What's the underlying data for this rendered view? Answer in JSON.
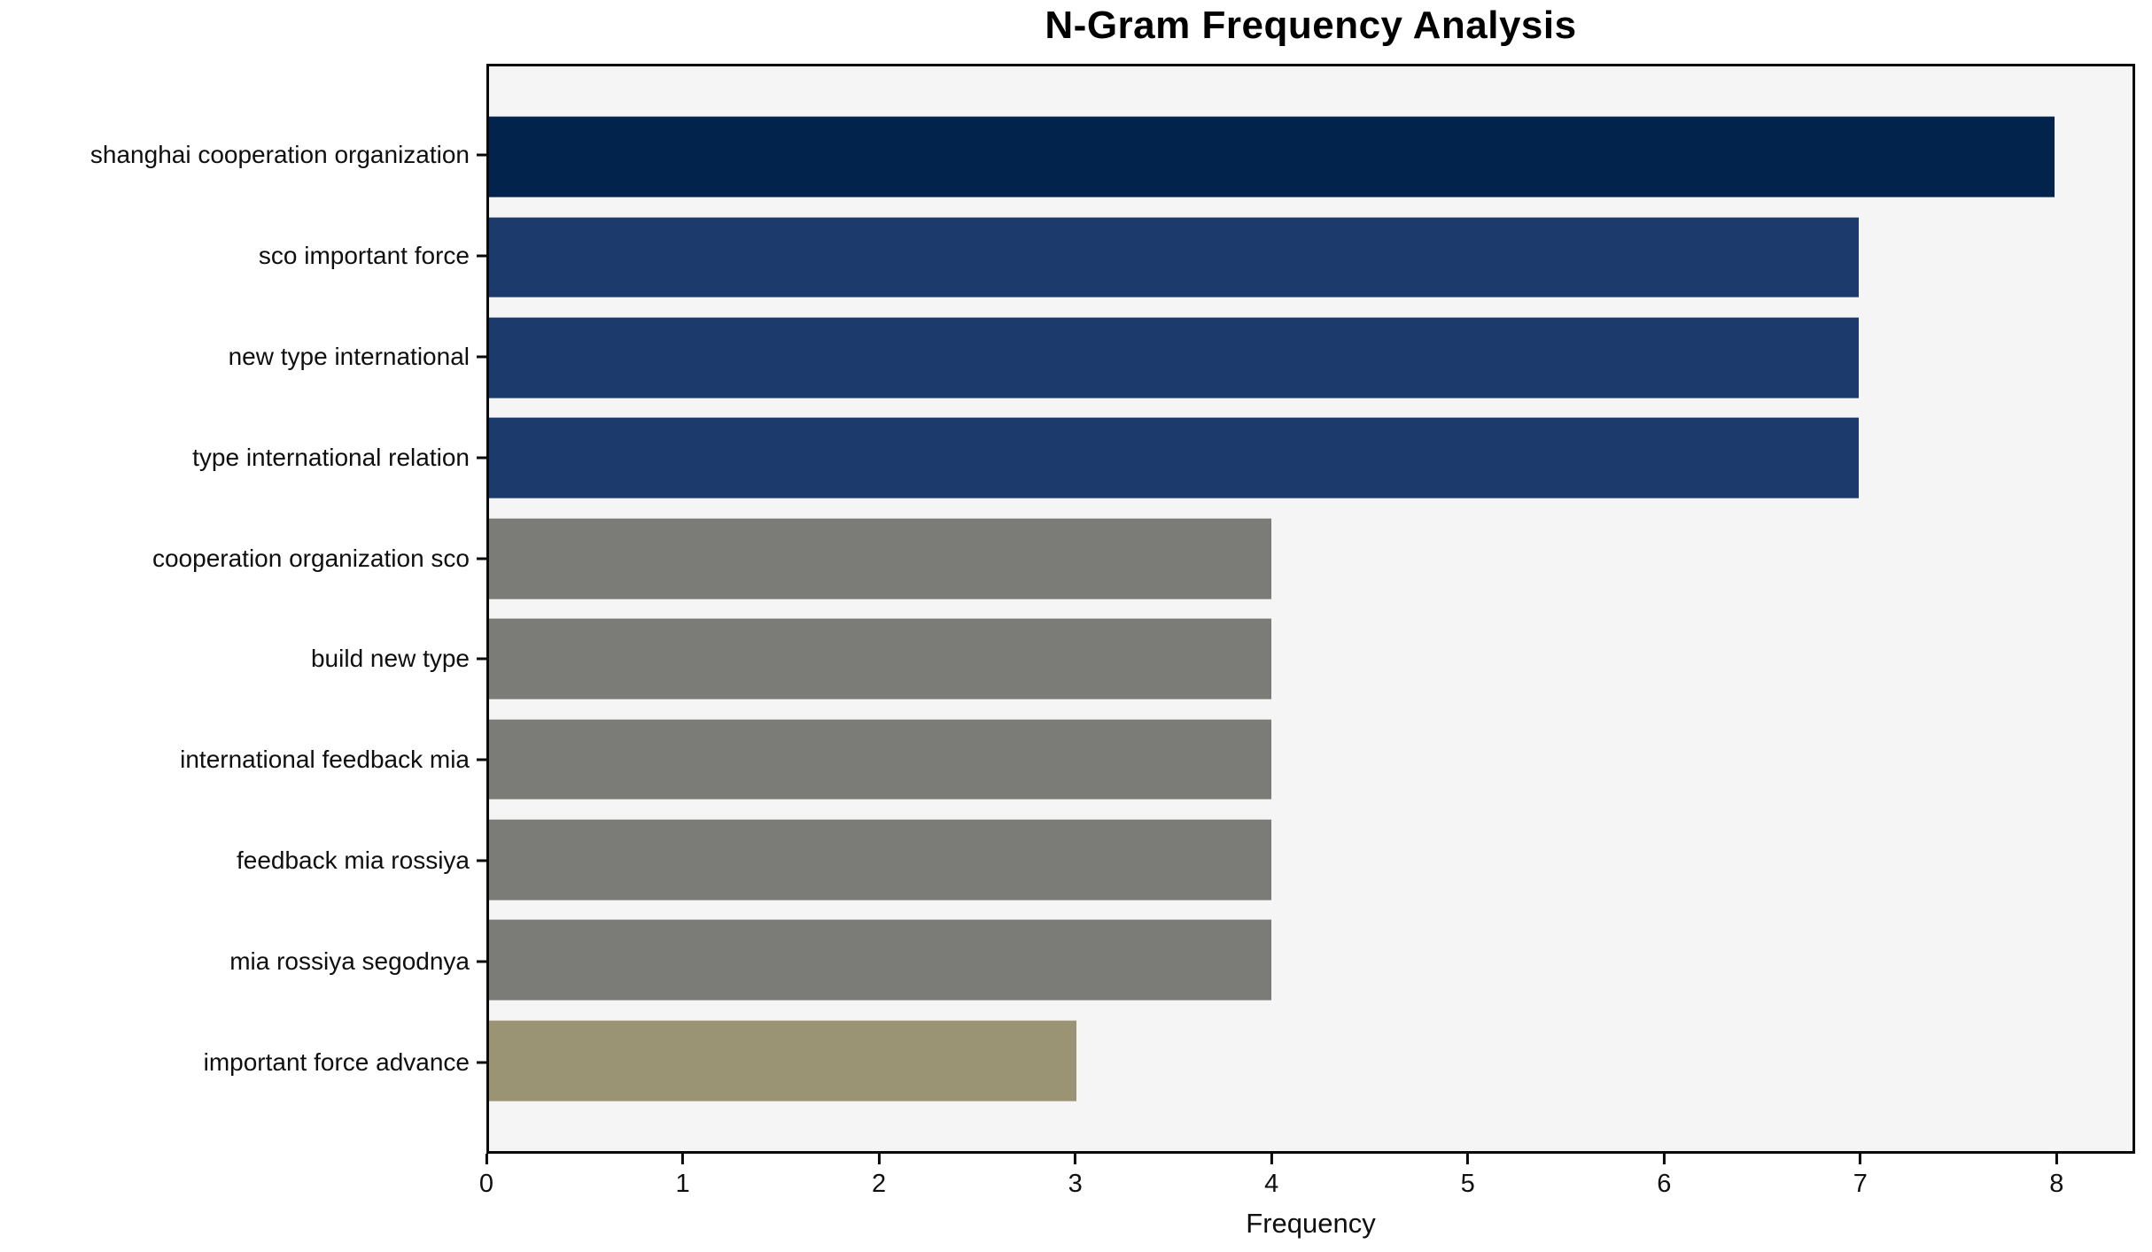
{
  "chart_data": {
    "type": "bar",
    "orientation": "horizontal",
    "title": "N-Gram Frequency Analysis",
    "xlabel": "Frequency",
    "ylabel": "",
    "categories": [
      "shanghai cooperation organization",
      "sco important force",
      "new type international",
      "type international relation",
      "cooperation organization sco",
      "build new type",
      "international feedback mia",
      "feedback mia rossiya",
      "mia rossiya segodnya",
      "important force advance"
    ],
    "values": [
      8,
      7,
      7,
      7,
      4,
      4,
      4,
      4,
      4,
      3
    ],
    "bar_colors": [
      "#02234c",
      "#1c3a6b",
      "#1c3a6b",
      "#1c3a6b",
      "#7b7b78",
      "#7b7b78",
      "#7b7b78",
      "#7b7b78",
      "#7b7b78",
      "#9a9374"
    ],
    "x_ticks": [
      0,
      1,
      2,
      3,
      4,
      5,
      6,
      7,
      8
    ],
    "xlim": [
      0,
      8.4
    ],
    "y_margin_units": 0.9,
    "bar_thickness_units": 0.8,
    "grid": false,
    "legend": null,
    "plot_background": "#f5f5f6",
    "figure_background": "#ffffff",
    "axis_color": "#0a0a0a"
  }
}
